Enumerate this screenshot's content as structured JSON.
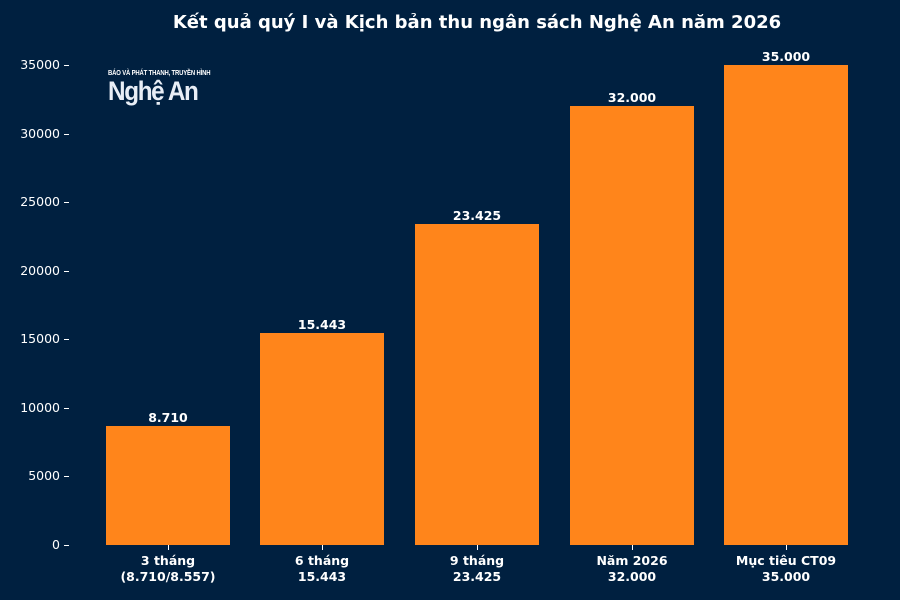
{
  "chart_data": {
    "type": "bar",
    "title": "Kết quả quý I và Kịch bản thu ngân sách Nghệ An năm 2026",
    "xlabel": "",
    "ylabel": "",
    "ylim": [
      0,
      35000
    ],
    "grid": false,
    "legend": null,
    "categories": [
      "3 tháng\n(8.710/8.557)",
      "6 tháng\n15.443",
      "9 tháng\n23.425",
      "Năm 2026\n32.000",
      "Mục tiêu CT09\n35.000"
    ],
    "category_lines": [
      [
        "3 tháng",
        "(8.710/8.557)"
      ],
      [
        "6 tháng",
        "15.443"
      ],
      [
        "9 tháng",
        "23.425"
      ],
      [
        "Năm 2026",
        "32.000"
      ],
      [
        "Mục tiêu CT09",
        "35.000"
      ]
    ],
    "values": [
      8710,
      15443,
      23425,
      32000,
      35000
    ],
    "data_labels": [
      "8.710",
      "15.443",
      "23.425",
      "32.000",
      "35.000"
    ],
    "yticks": [
      0,
      5000,
      10000,
      15000,
      20000,
      25000,
      30000,
      35000
    ],
    "ytick_labels": [
      "0",
      "5000",
      "10000",
      "15000",
      "20000",
      "25000",
      "30000",
      "35000"
    ],
    "colors": {
      "background": "#002040",
      "bar": "#ff851b",
      "text": "#ffffff"
    }
  },
  "logo": {
    "small_text": "BÁO VÀ PHÁT THANH, TRUYỀN HÌNH",
    "big_text": "Nghệ An"
  }
}
